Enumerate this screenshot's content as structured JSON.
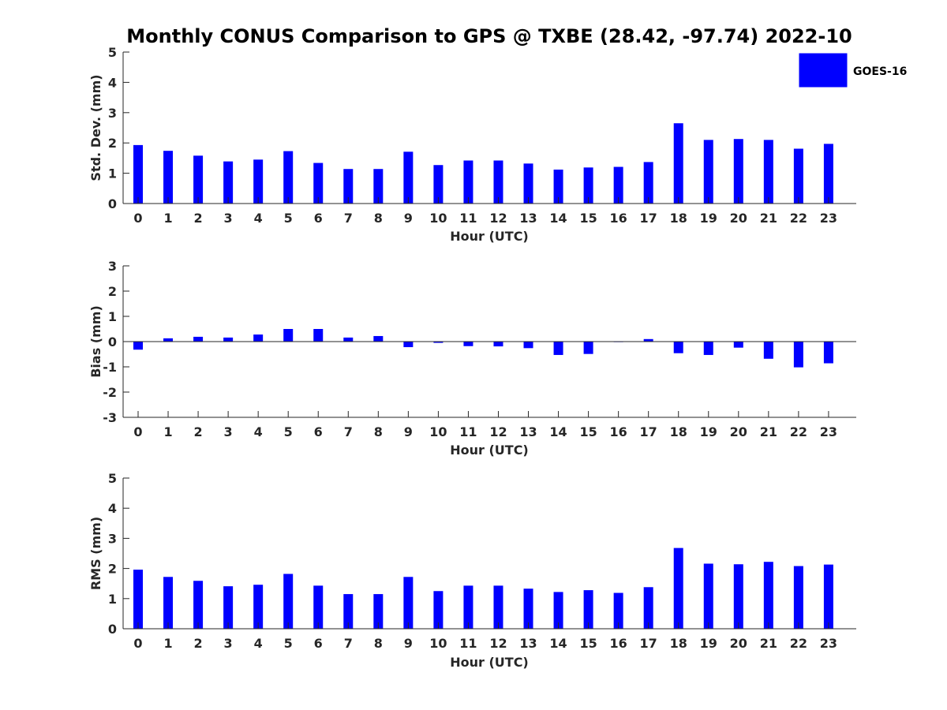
{
  "chart_data": {
    "title": "Monthly CONUS Comparison to GPS @ TXBE (28.42, -97.74) 2022-10",
    "legend": {
      "entries": [
        "GOES-16"
      ],
      "placement": "top-right"
    },
    "series_color": "#0000ff",
    "panels": [
      {
        "type": "bar",
        "xlabel": "Hour (UTC)",
        "ylabel": "Std. Dev. (mm)",
        "ylim": [
          0,
          5
        ],
        "yticks": [
          "0",
          "1",
          "2",
          "3",
          "4",
          "5"
        ],
        "categories": [
          "0",
          "1",
          "2",
          "3",
          "4",
          "5",
          "6",
          "7",
          "8",
          "9",
          "10",
          "11",
          "12",
          "13",
          "14",
          "15",
          "16",
          "17",
          "18",
          "19",
          "20",
          "21",
          "22",
          "23"
        ],
        "series": [
          {
            "name": "GOES-16",
            "values": [
              1.93,
              1.74,
              1.58,
              1.39,
              1.45,
              1.73,
              1.34,
              1.14,
              1.14,
              1.71,
              1.27,
              1.42,
              1.42,
              1.32,
              1.12,
              1.19,
              1.21,
              1.37,
              2.65,
              2.1,
              2.13,
              2.1,
              1.81,
              1.97
            ]
          }
        ]
      },
      {
        "type": "bar",
        "xlabel": "Hour (UTC)",
        "ylabel": "Bias (mm)",
        "ylim": [
          -3,
          3
        ],
        "yticks": [
          "-3",
          "-2",
          "-1",
          "0",
          "1",
          "2",
          "3"
        ],
        "categories": [
          "0",
          "1",
          "2",
          "3",
          "4",
          "5",
          "6",
          "7",
          "8",
          "9",
          "10",
          "11",
          "12",
          "13",
          "14",
          "15",
          "16",
          "17",
          "18",
          "19",
          "20",
          "21",
          "22",
          "23"
        ],
        "series": [
          {
            "name": "GOES-16",
            "values": [
              -0.32,
              0.13,
              0.19,
              0.16,
              0.28,
              0.5,
              0.5,
              0.16,
              0.22,
              -0.22,
              -0.05,
              -0.18,
              -0.19,
              -0.26,
              -0.53,
              -0.49,
              -0.02,
              0.1,
              -0.46,
              -0.53,
              -0.24,
              -0.68,
              -1.02,
              -0.86
            ]
          }
        ]
      },
      {
        "type": "bar",
        "xlabel": "Hour (UTC)",
        "ylabel": "RMS (mm)",
        "ylim": [
          0,
          5
        ],
        "yticks": [
          "0",
          "1",
          "2",
          "3",
          "4",
          "5"
        ],
        "categories": [
          "0",
          "1",
          "2",
          "3",
          "4",
          "5",
          "6",
          "7",
          "8",
          "9",
          "10",
          "11",
          "12",
          "13",
          "14",
          "15",
          "16",
          "17",
          "18",
          "19",
          "20",
          "21",
          "22",
          "23"
        ],
        "series": [
          {
            "name": "GOES-16",
            "values": [
              1.96,
              1.72,
              1.59,
              1.41,
              1.46,
              1.82,
              1.43,
              1.15,
              1.15,
              1.72,
              1.25,
              1.43,
              1.43,
              1.33,
              1.22,
              1.28,
              1.19,
              1.38,
              2.68,
              2.16,
              2.14,
              2.22,
              2.08,
              2.13
            ]
          }
        ]
      }
    ]
  }
}
